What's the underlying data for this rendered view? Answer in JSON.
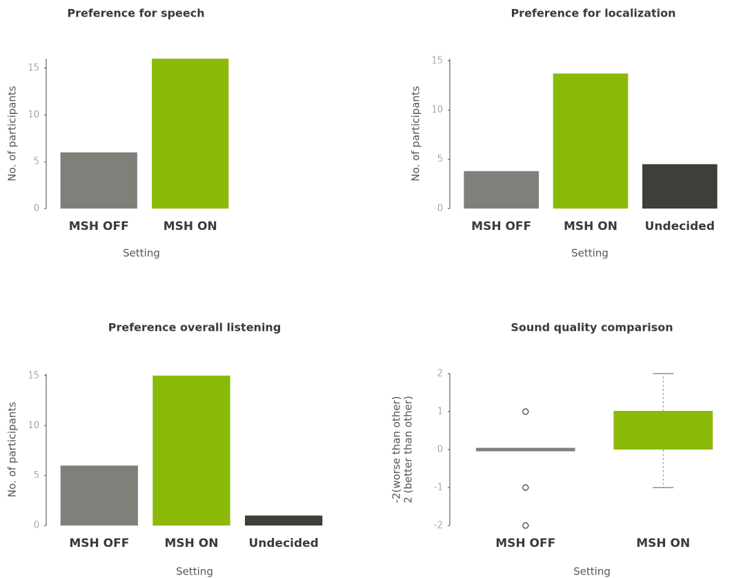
{
  "chart_data": [
    {
      "type": "bar",
      "title": "Preference for speech",
      "xlabel": "Setting",
      "ylabel": "No. of participants",
      "categories": [
        "MSH OFF",
        "MSH ON"
      ],
      "values": [
        6,
        16
      ],
      "colors": [
        "#80807b",
        "#8aba07"
      ],
      "ylim": [
        0,
        16
      ],
      "yticks": [
        0,
        5,
        10,
        15
      ]
    },
    {
      "type": "bar",
      "title": "Preference for localization",
      "xlabel": "Setting",
      "ylabel": "No. of participants",
      "categories": [
        "MSH OFF",
        "MSH ON",
        "Undecided"
      ],
      "values": [
        3.8,
        13.7,
        4.5
      ],
      "colors": [
        "#80807b",
        "#8aba07",
        "#403e39"
      ],
      "ylim": [
        0,
        15.2
      ],
      "yticks": [
        0,
        5,
        10,
        15
      ]
    },
    {
      "type": "bar",
      "title": "Preference overall listening",
      "xlabel": "Setting",
      "ylabel": "No. of participants",
      "categories": [
        "MSH OFF",
        "MSH ON",
        "Undecided"
      ],
      "values": [
        6,
        15,
        1
      ],
      "colors": [
        "#80807b",
        "#8aba07",
        "#403e39"
      ],
      "ylim": [
        0,
        15.2
      ],
      "yticks": [
        0,
        5,
        10,
        15
      ]
    },
    {
      "type": "box",
      "title": "Sound quality comparison",
      "xlabel": "Setting",
      "ylabel": [
        "-2(worse than other)",
        "2 (better than other)"
      ],
      "categories": [
        "MSH OFF",
        "MSH ON"
      ],
      "boxes": [
        {
          "min": 0,
          "q1": 0,
          "median": 0,
          "q3": 0,
          "max": 0,
          "outliers": [
            1,
            -1,
            -2
          ]
        },
        {
          "min": -1,
          "q1": 0,
          "median": 1,
          "q3": 1,
          "max": 2,
          "outliers": []
        }
      ],
      "colors": [
        "#80807b",
        "#8aba07"
      ],
      "ylim": [
        -2,
        2
      ],
      "yticks": [
        -2,
        -1,
        0,
        1,
        2
      ]
    }
  ]
}
